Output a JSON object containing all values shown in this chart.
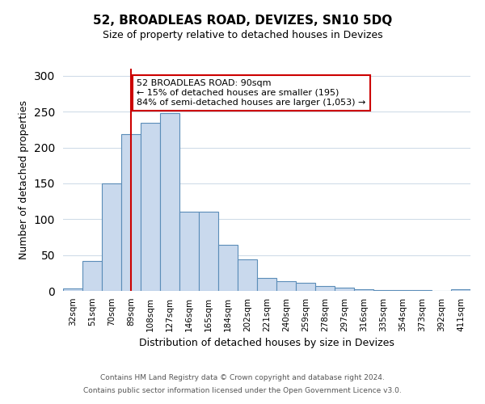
{
  "title": "52, BROADLEAS ROAD, DEVIZES, SN10 5DQ",
  "subtitle": "Size of property relative to detached houses in Devizes",
  "xlabel": "Distribution of detached houses by size in Devizes",
  "ylabel": "Number of detached properties",
  "bar_color": "#c9d9ed",
  "bar_edge_color": "#5b8db8",
  "categories": [
    "32sqm",
    "51sqm",
    "70sqm",
    "89sqm",
    "108sqm",
    "127sqm",
    "146sqm",
    "165sqm",
    "184sqm",
    "202sqm",
    "221sqm",
    "240sqm",
    "259sqm",
    "278sqm",
    "297sqm",
    "316sqm",
    "335sqm",
    "354sqm",
    "373sqm",
    "392sqm",
    "411sqm"
  ],
  "values": [
    3,
    42,
    150,
    219,
    235,
    248,
    110,
    110,
    64,
    44,
    18,
    14,
    11,
    7,
    5,
    2,
    1,
    1,
    1,
    0,
    2
  ],
  "ylim": [
    0,
    310
  ],
  "yticks": [
    0,
    50,
    100,
    150,
    200,
    250,
    300
  ],
  "vline_x": 3,
  "vline_color": "#cc0000",
  "annotation_text": "52 BROADLEAS ROAD: 90sqm\n← 15% of detached houses are smaller (195)\n84% of semi-detached houses are larger (1,053) →",
  "annotation_box_color": "#ffffff",
  "annotation_box_edge": "#cc0000",
  "footer_line1": "Contains HM Land Registry data © Crown copyright and database right 2024.",
  "footer_line2": "Contains public sector information licensed under the Open Government Licence v3.0.",
  "bg_color": "#ffffff",
  "grid_color": "#d0dce8"
}
